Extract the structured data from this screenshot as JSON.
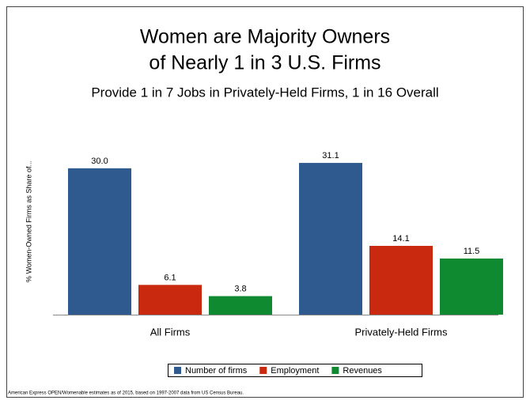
{
  "chart_data": {
    "type": "bar",
    "title": "Women are Majority Owners of Nearly 1 in 3 U.S. Firms",
    "subtitle": "Provide 1 in 7 Jobs in Privately-Held Firms, 1 in 16 Overall",
    "y_label": "% Women-Owned Firms as Share of...",
    "categories": [
      "All Firms",
      "Privately-Held Firms"
    ],
    "series": [
      {
        "name": "Number of firms",
        "color": "#2f5a8f",
        "values": [
          30.0,
          31.1
        ],
        "value_labels": [
          "30.0",
          "31.1"
        ]
      },
      {
        "name": "Employment",
        "color": "#c8290f",
        "values": [
          6.1,
          14.1
        ],
        "value_labels": [
          "6.1",
          "14.1"
        ]
      },
      {
        "name": "Revenues",
        "color": "#0f8a30",
        "values": [
          3.8,
          11.5
        ],
        "value_labels": [
          "3.8",
          "11.5"
        ]
      }
    ],
    "ylim": [
      0,
      35
    ],
    "legend": "bottom",
    "footnote": "American Express OPEN/Womenable estimates as of 2015, based on 1997-2007 data from US Census Bureau."
  }
}
